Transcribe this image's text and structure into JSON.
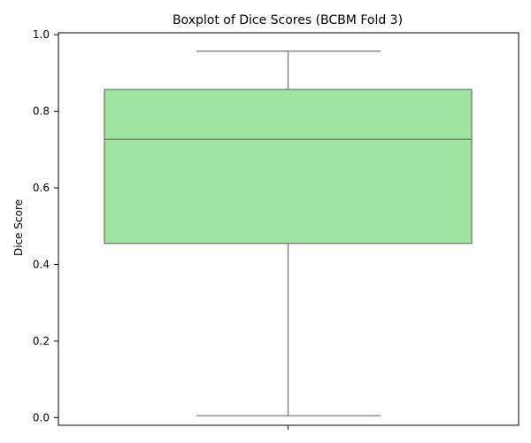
{
  "chart_data": {
    "type": "box",
    "title": "Boxplot of Dice Scores (BCBM Fold 3)",
    "xlabel": "",
    "ylabel": "Dice Score",
    "categories": [
      ""
    ],
    "series": [
      {
        "values": {
          "min": 0.005,
          "q1": 0.455,
          "median": 0.727,
          "q3": 0.857,
          "max": 0.957
        }
      }
    ],
    "ylim": [
      -0.02,
      1.005
    ],
    "y_ticks": [
      0.0,
      0.2,
      0.4,
      0.6,
      0.8,
      1.0
    ],
    "y_tick_labels": [
      "0.0",
      "0.2",
      "0.4",
      "0.6",
      "0.8",
      "1.0"
    ],
    "grid": false,
    "legend": "none",
    "colors": {
      "box_fill": "#9ee39e",
      "box_stroke": "#707070",
      "axis": "#000000"
    }
  }
}
